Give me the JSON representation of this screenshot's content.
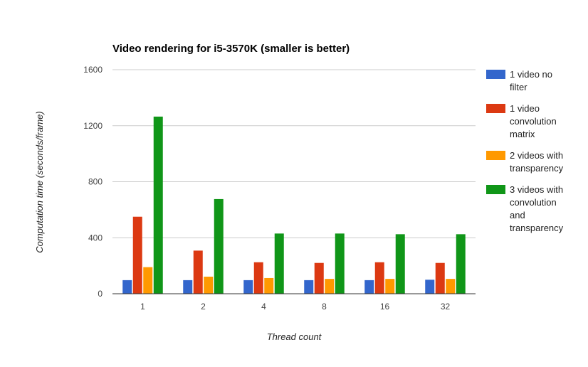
{
  "chart_data": {
    "type": "bar",
    "title": "Video rendering for i5-3570K (smaller is better)",
    "xlabel": "Thread count",
    "ylabel": "Computation time (seconds/frame)",
    "categories": [
      "1",
      "2",
      "4",
      "8",
      "16",
      "32"
    ],
    "ylim": [
      0,
      1600
    ],
    "yticks": [
      0,
      400,
      800,
      1200,
      1600
    ],
    "grid": true,
    "legend_position": "right",
    "series": [
      {
        "name": "1 video no filter",
        "legend_lines": [
          "1 video no",
          "filter"
        ],
        "color": "#3366cc",
        "values": [
          97,
          97,
          97,
          97,
          97,
          100
        ]
      },
      {
        "name": "1 video convolution matrix",
        "legend_lines": [
          "1 video",
          "convolution",
          "matrix"
        ],
        "color": "#dc3912",
        "values": [
          550,
          308,
          225,
          220,
          225,
          220
        ]
      },
      {
        "name": "2 videos with transparency",
        "legend_lines": [
          "2 videos with",
          "transparency"
        ],
        "color": "#ff9900",
        "values": [
          190,
          122,
          112,
          106,
          106,
          106
        ]
      },
      {
        "name": "3 videos with convolution and transparency",
        "legend_lines": [
          "3 videos with",
          "convolution",
          "and",
          "transparency"
        ],
        "color": "#109618",
        "values": [
          1265,
          676,
          430,
          430,
          425,
          425
        ]
      }
    ]
  }
}
